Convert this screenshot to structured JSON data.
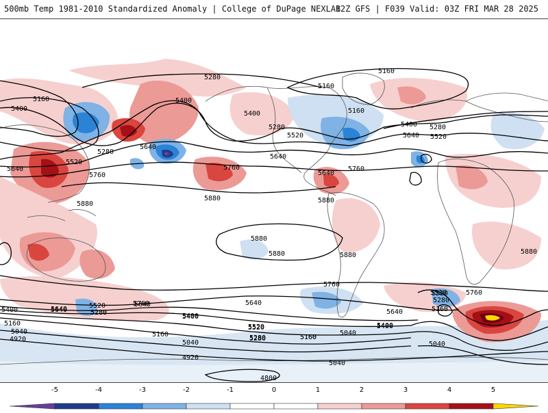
{
  "header": {
    "title_left": "500mb Temp 1981-2010 Standardized Anomaly | College of DuPage NEXLAB",
    "title_right": "12Z GFS | F039 Valid: 03Z FRI MAR 28 2025"
  },
  "colors": {
    "neg5": "#6a3d9a",
    "neg4": "#1f3c88",
    "neg3": "#2b83d6",
    "neg2": "#7fb2e5",
    "neg1": "#cfe0f2",
    "zero": "#ffffff",
    "pos1": "#f6d0cf",
    "pos2": "#ec9a96",
    "pos3": "#d9463f",
    "pos4": "#a51017",
    "pos5": "#6e0008",
    "pos_extreme": "#ffd700",
    "land_border": "#555555",
    "contour": "#000000"
  },
  "contour_labels": [
    "5160",
    "5280",
    "5160",
    "5160",
    "5400",
    "5160",
    "5400",
    "5400",
    "5280",
    "5640",
    "5280",
    "5520",
    "5520",
    "5640",
    "5760",
    "5400",
    "5280",
    "5640",
    "5520",
    "5640",
    "5760",
    "5640",
    "5760",
    "5880",
    "5880",
    "5880",
    "5880",
    "5880",
    "5880",
    "5880",
    "5760",
    "5760",
    "5640",
    "5520",
    "5400",
    "5520",
    "5280",
    "5640",
    "5400",
    "5160",
    "5640",
    "5520",
    "5280",
    "5160",
    "5040",
    "5040",
    "4920",
    "5400",
    "5520",
    "5640",
    "5760",
    "5400",
    "5280",
    "5160",
    "5040",
    "4920",
    "4800",
    "5040",
    "5160",
    "5280",
    "5520",
    "5160",
    "5280",
    "5400",
    "5640",
    "5040"
  ],
  "colorbar": {
    "tick_labels": [
      "-5",
      "-4",
      "-3",
      "-2",
      "-1",
      "0",
      "1",
      "2",
      "3",
      "4",
      "5"
    ]
  }
}
